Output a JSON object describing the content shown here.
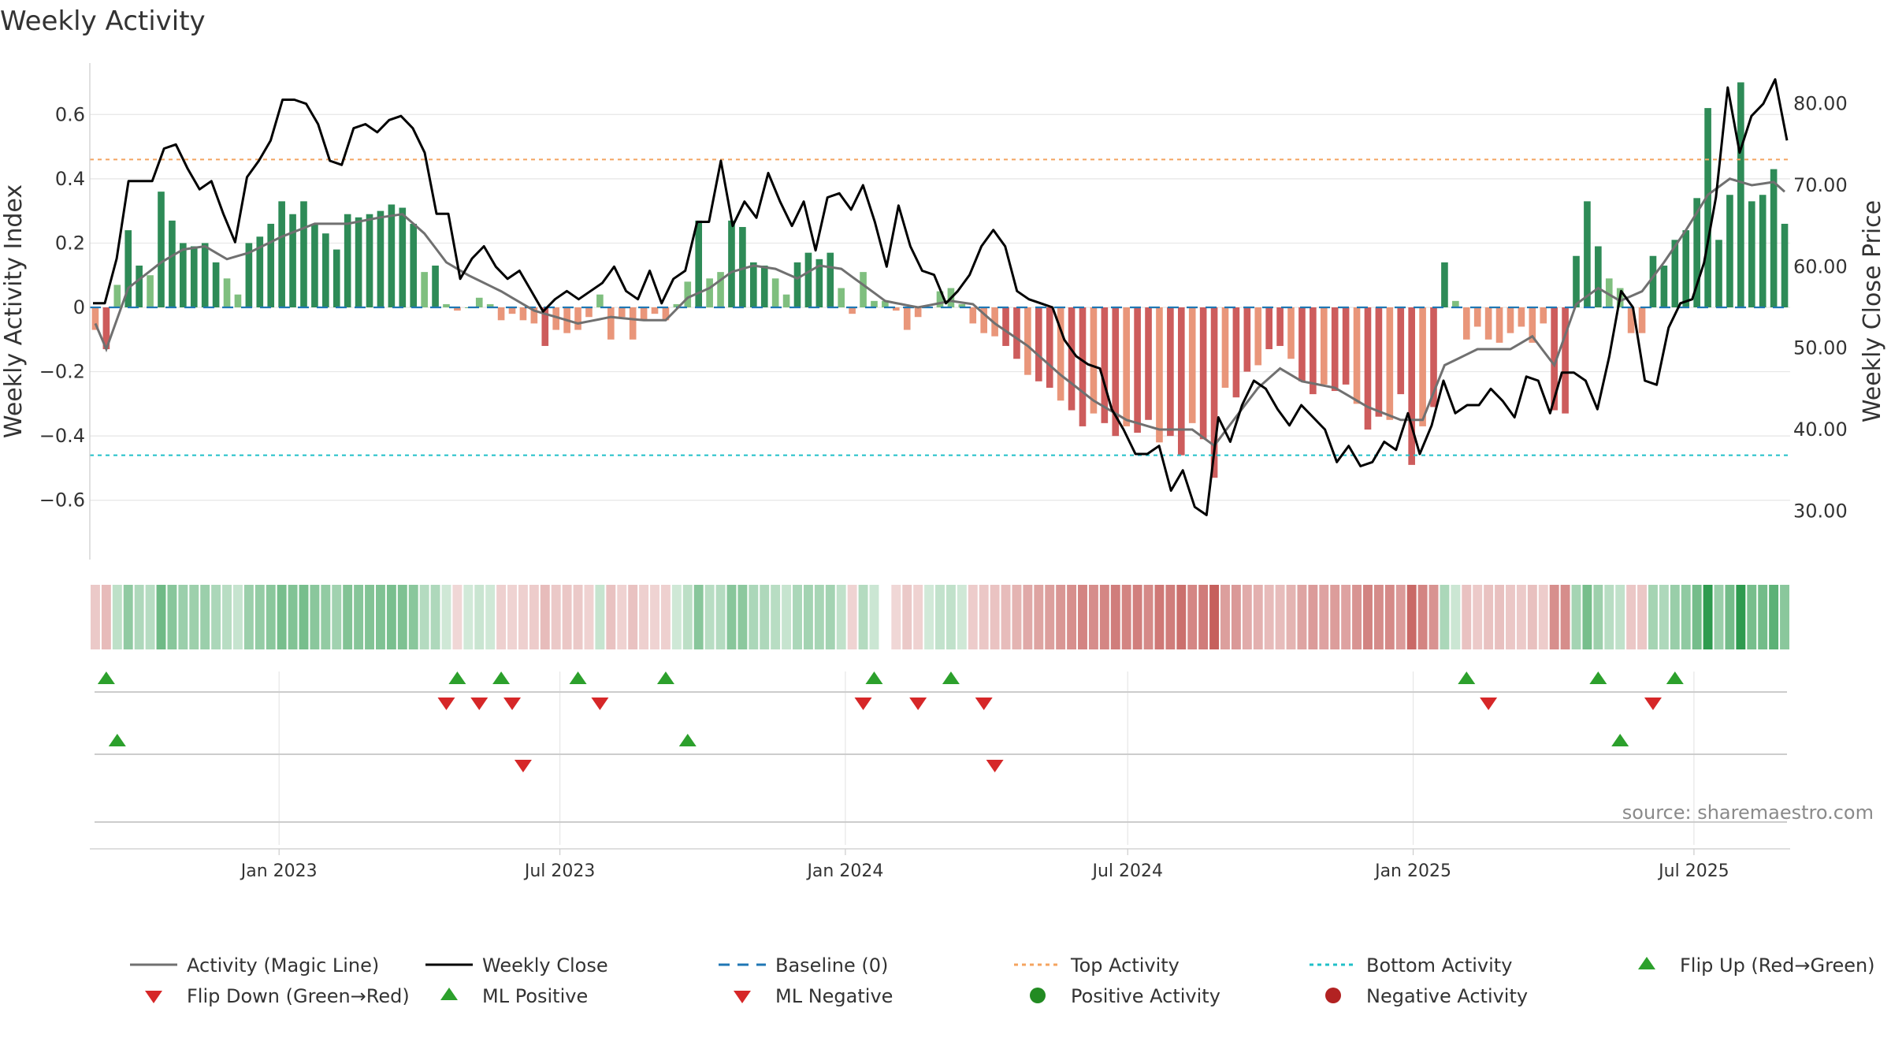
{
  "chart_data": {
    "type": "bar+line",
    "title": "Weekly Activity",
    "ylabel": "Weekly Activity Index",
    "y2label": "Weekly Close Price",
    "ylim": [
      -0.76,
      0.76
    ],
    "y2lim": [
      25.0,
      85.0
    ],
    "yticks": [
      -0.6,
      -0.4,
      -0.2,
      0,
      0.2,
      0.4,
      0.6
    ],
    "ytick_labels": [
      "−0.6",
      "−0.4",
      "−0.2",
      "0",
      "0.2",
      "0.4",
      "0.6"
    ],
    "y2ticks": [
      30,
      40,
      50,
      60,
      70,
      80
    ],
    "y2tick_labels": [
      "30.00",
      "40.00",
      "50.00",
      "60.00",
      "70.00",
      "80.00"
    ],
    "x_start": "2022-09-01",
    "x_end": "2025-09-01",
    "xticks": [
      {
        "date": "2023-01-01",
        "label": "Jan 2023"
      },
      {
        "date": "2023-07-01",
        "label": "Jul 2023"
      },
      {
        "date": "2024-01-01",
        "label": "Jan 2024"
      },
      {
        "date": "2024-07-01",
        "label": "Jul 2024"
      },
      {
        "date": "2025-01-01",
        "label": "Jan 2025"
      },
      {
        "date": "2025-07-01",
        "label": "Jul 2025"
      }
    ],
    "top_activity": 0.46,
    "bottom_activity": -0.46,
    "baseline": 0,
    "bar_anchors": [
      [
        0,
        -0.07
      ],
      [
        1,
        -0.13
      ],
      [
        2,
        0.07
      ],
      [
        3,
        0.24
      ],
      [
        4,
        0.13
      ],
      [
        5,
        0.1
      ],
      [
        6,
        0.36
      ],
      [
        7,
        0.27
      ],
      [
        8,
        0.2
      ],
      [
        9,
        0.19
      ],
      [
        10,
        0.2
      ],
      [
        11,
        0.14
      ],
      [
        12,
        0.09
      ],
      [
        13,
        0.04
      ],
      [
        14,
        0.2
      ],
      [
        15,
        0.22
      ],
      [
        16,
        0.26
      ],
      [
        17,
        0.33
      ],
      [
        18,
        0.29
      ],
      [
        19,
        0.33
      ],
      [
        20,
        0.26
      ],
      [
        21,
        0.23
      ],
      [
        22,
        0.18
      ],
      [
        23,
        0.29
      ],
      [
        24,
        0.28
      ],
      [
        25,
        0.29
      ],
      [
        26,
        0.3
      ],
      [
        27,
        0.32
      ],
      [
        28,
        0.31
      ],
      [
        29,
        0.26
      ],
      [
        30,
        0.11
      ],
      [
        31,
        0.13
      ],
      [
        32,
        0.01
      ],
      [
        33,
        -0.01
      ],
      [
        34,
        0
      ],
      [
        35,
        0.03
      ],
      [
        36,
        0.01
      ],
      [
        37,
        -0.04
      ],
      [
        38,
        -0.02
      ],
      [
        39,
        -0.04
      ],
      [
        40,
        -0.05
      ],
      [
        41,
        -0.12
      ],
      [
        42,
        -0.07
      ],
      [
        43,
        -0.08
      ],
      [
        44,
        -0.07
      ],
      [
        45,
        -0.03
      ],
      [
        46,
        0.04
      ],
      [
        47,
        -0.1
      ],
      [
        48,
        -0.03
      ],
      [
        49,
        -0.1
      ],
      [
        50,
        -0.04
      ],
      [
        51,
        -0.02
      ],
      [
        52,
        -0.04
      ],
      [
        53,
        0.01
      ],
      [
        54,
        0.08
      ],
      [
        55,
        0.27
      ],
      [
        56,
        0.09
      ],
      [
        57,
        0.11
      ],
      [
        58,
        0.27
      ],
      [
        59,
        0.25
      ],
      [
        60,
        0.14
      ],
      [
        61,
        0.13
      ],
      [
        62,
        0.09
      ],
      [
        63,
        0.04
      ],
      [
        64,
        0.14
      ],
      [
        65,
        0.17
      ],
      [
        66,
        0.15
      ],
      [
        67,
        0.17
      ],
      [
        68,
        0.06
      ],
      [
        69,
        -0.02
      ],
      [
        70,
        0.11
      ],
      [
        71,
        0.02
      ],
      [
        72,
        0.02
      ],
      [
        73,
        -0.01
      ],
      [
        74,
        -0.07
      ],
      [
        75,
        -0.03
      ],
      [
        76,
        0
      ],
      [
        77,
        0.05
      ],
      [
        78,
        0.06
      ],
      [
        79,
        0.01
      ],
      [
        80,
        -0.05
      ],
      [
        81,
        -0.08
      ],
      [
        82,
        -0.09
      ],
      [
        83,
        -0.12
      ],
      [
        84,
        -0.16
      ],
      [
        85,
        -0.21
      ],
      [
        86,
        -0.23
      ],
      [
        87,
        -0.25
      ],
      [
        88,
        -0.29
      ],
      [
        89,
        -0.32
      ],
      [
        90,
        -0.37
      ],
      [
        91,
        -0.33
      ],
      [
        92,
        -0.36
      ],
      [
        93,
        -0.4
      ],
      [
        94,
        -0.37
      ],
      [
        95,
        -0.39
      ],
      [
        96,
        -0.35
      ],
      [
        97,
        -0.42
      ],
      [
        98,
        -0.4
      ],
      [
        99,
        -0.46
      ],
      [
        100,
        -0.36
      ],
      [
        101,
        -0.41
      ],
      [
        102,
        -0.53
      ],
      [
        103,
        -0.25
      ],
      [
        104,
        -0.28
      ],
      [
        105,
        -0.2
      ],
      [
        106,
        -0.18
      ],
      [
        107,
        -0.13
      ],
      [
        108,
        -0.12
      ],
      [
        109,
        -0.16
      ],
      [
        110,
        -0.23
      ],
      [
        111,
        -0.27
      ],
      [
        112,
        -0.24
      ],
      [
        113,
        -0.26
      ],
      [
        114,
        -0.24
      ],
      [
        115,
        -0.3
      ],
      [
        116,
        -0.38
      ],
      [
        117,
        -0.34
      ],
      [
        118,
        -0.35
      ],
      [
        119,
        -0.27
      ],
      [
        120,
        -0.49
      ],
      [
        121,
        -0.37
      ],
      [
        122,
        -0.31
      ],
      [
        123,
        0.14
      ],
      [
        124,
        0.02
      ],
      [
        125,
        -0.1
      ],
      [
        126,
        -0.06
      ],
      [
        127,
        -0.1
      ],
      [
        128,
        -0.11
      ],
      [
        129,
        -0.08
      ],
      [
        130,
        -0.06
      ],
      [
        131,
        -0.11
      ],
      [
        132,
        -0.05
      ],
      [
        133,
        -0.32
      ],
      [
        134,
        -0.33
      ],
      [
        135,
        0.16
      ],
      [
        136,
        0.33
      ],
      [
        137,
        0.19
      ],
      [
        138,
        0.09
      ],
      [
        139,
        0.06
      ],
      [
        140,
        -0.08
      ],
      [
        141,
        -0.08
      ],
      [
        142,
        0.16
      ],
      [
        143,
        0.13
      ],
      [
        144,
        0.21
      ],
      [
        145,
        0.24
      ],
      [
        146,
        0.34
      ],
      [
        147,
        0.62
      ],
      [
        148,
        0.21
      ],
      [
        149,
        0.35
      ],
      [
        150,
        0.7
      ],
      [
        151,
        0.33
      ],
      [
        152,
        0.35
      ],
      [
        153,
        0.43
      ],
      [
        154,
        0.26
      ]
    ],
    "magic_line_anchors": [
      [
        0,
        -0.05
      ],
      [
        1,
        -0.13
      ],
      [
        3,
        0.06
      ],
      [
        6,
        0.14
      ],
      [
        8,
        0.18
      ],
      [
        10,
        0.19
      ],
      [
        12,
        0.15
      ],
      [
        14,
        0.17
      ],
      [
        17,
        0.22
      ],
      [
        20,
        0.26
      ],
      [
        23,
        0.26
      ],
      [
        26,
        0.28
      ],
      [
        28,
        0.29
      ],
      [
        30,
        0.23
      ],
      [
        32,
        0.14
      ],
      [
        34,
        0.1
      ],
      [
        37,
        0.05
      ],
      [
        40,
        -0.01
      ],
      [
        44,
        -0.05
      ],
      [
        47,
        -0.03
      ],
      [
        50,
        -0.04
      ],
      [
        52,
        -0.04
      ],
      [
        54,
        0.03
      ],
      [
        56,
        0.06
      ],
      [
        58,
        0.11
      ],
      [
        60,
        0.13
      ],
      [
        62,
        0.12
      ],
      [
        64,
        0.09
      ],
      [
        66,
        0.13
      ],
      [
        68,
        0.12
      ],
      [
        70,
        0.07
      ],
      [
        72,
        0.02
      ],
      [
        75,
        0
      ],
      [
        78,
        0.02
      ],
      [
        80,
        0.01
      ],
      [
        82,
        -0.05
      ],
      [
        85,
        -0.12
      ],
      [
        88,
        -0.21
      ],
      [
        91,
        -0.29
      ],
      [
        94,
        -0.35
      ],
      [
        97,
        -0.38
      ],
      [
        100,
        -0.38
      ],
      [
        102,
        -0.43
      ],
      [
        104,
        -0.34
      ],
      [
        106,
        -0.25
      ],
      [
        108,
        -0.19
      ],
      [
        110,
        -0.23
      ],
      [
        113,
        -0.25
      ],
      [
        116,
        -0.31
      ],
      [
        119,
        -0.35
      ],
      [
        121,
        -0.35
      ],
      [
        123,
        -0.18
      ],
      [
        126,
        -0.13
      ],
      [
        129,
        -0.13
      ],
      [
        131,
        -0.09
      ],
      [
        133,
        -0.18
      ],
      [
        135,
        0.01
      ],
      [
        137,
        0.06
      ],
      [
        139,
        0.02
      ],
      [
        141,
        0.05
      ],
      [
        143,
        0.14
      ],
      [
        145,
        0.24
      ],
      [
        147,
        0.35
      ],
      [
        149,
        0.4
      ],
      [
        151,
        0.38
      ],
      [
        153,
        0.39
      ],
      [
        154,
        0.36
      ]
    ],
    "weekly_close_anchors": [
      [
        0,
        55.5
      ],
      [
        1,
        55.5
      ],
      [
        2,
        61
      ],
      [
        3,
        70.5
      ],
      [
        5,
        70.5
      ],
      [
        6,
        74.5
      ],
      [
        7,
        75
      ],
      [
        8,
        72
      ],
      [
        9,
        69.5
      ],
      [
        10,
        70.5
      ],
      [
        11,
        66.5
      ],
      [
        12,
        63
      ],
      [
        13,
        71
      ],
      [
        14,
        73
      ],
      [
        15,
        75.5
      ],
      [
        16,
        80.5
      ],
      [
        17,
        80.5
      ],
      [
        18,
        80
      ],
      [
        19,
        77.5
      ],
      [
        20,
        73
      ],
      [
        21,
        72.5
      ],
      [
        22,
        77
      ],
      [
        23,
        77.5
      ],
      [
        24,
        76.5
      ],
      [
        25,
        78
      ],
      [
        26,
        78.5
      ],
      [
        27,
        77
      ],
      [
        28,
        74
      ],
      [
        29,
        66.5
      ],
      [
        30,
        66.5
      ],
      [
        31,
        58.5
      ],
      [
        32,
        61
      ],
      [
        33,
        62.5
      ],
      [
        34,
        60
      ],
      [
        35,
        58.5
      ],
      [
        36,
        59.5
      ],
      [
        37,
        57
      ],
      [
        38,
        54.5
      ],
      [
        39,
        56
      ],
      [
        40,
        57
      ],
      [
        41,
        56
      ],
      [
        42,
        57
      ],
      [
        43,
        58
      ],
      [
        44,
        60
      ],
      [
        45,
        57
      ],
      [
        46,
        56
      ],
      [
        47,
        59.5
      ],
      [
        48,
        55.5
      ],
      [
        49,
        58.5
      ],
      [
        50,
        59.5
      ],
      [
        51,
        65.5
      ],
      [
        52,
        65.5
      ],
      [
        53,
        73
      ],
      [
        54,
        65
      ],
      [
        55,
        68
      ],
      [
        56,
        66
      ],
      [
        57,
        71.5
      ],
      [
        58,
        68
      ],
      [
        59,
        65
      ],
      [
        60,
        68
      ],
      [
        61,
        62
      ],
      [
        62,
        68.5
      ],
      [
        63,
        69
      ],
      [
        64,
        67
      ],
      [
        65,
        70
      ],
      [
        66,
        65.5
      ],
      [
        67,
        60
      ],
      [
        68,
        67.5
      ],
      [
        69,
        62.5
      ],
      [
        70,
        59.5
      ],
      [
        71,
        59
      ],
      [
        72,
        55.5
      ],
      [
        73,
        57
      ],
      [
        74,
        59
      ],
      [
        75,
        62.5
      ],
      [
        76,
        64.5
      ],
      [
        77,
        62.5
      ],
      [
        78,
        57
      ],
      [
        79,
        56
      ],
      [
        80,
        55.5
      ],
      [
        81,
        55
      ],
      [
        82,
        51
      ],
      [
        83,
        49
      ],
      [
        84,
        48
      ],
      [
        85,
        47.5
      ],
      [
        86,
        42.5
      ],
      [
        87,
        40
      ],
      [
        88,
        37
      ],
      [
        89,
        37
      ],
      [
        90,
        38
      ],
      [
        91,
        32.5
      ],
      [
        92,
        35
      ],
      [
        93,
        30.5
      ],
      [
        94,
        29.5
      ],
      [
        95,
        41.5
      ],
      [
        96,
        38.5
      ],
      [
        97,
        43
      ],
      [
        98,
        46
      ],
      [
        99,
        45
      ],
      [
        100,
        42.5
      ],
      [
        101,
        40.5
      ],
      [
        102,
        43
      ],
      [
        103,
        41.5
      ],
      [
        104,
        40
      ],
      [
        105,
        36
      ],
      [
        106,
        38
      ],
      [
        107,
        35.5
      ],
      [
        108,
        36
      ],
      [
        109,
        38.5
      ],
      [
        110,
        37.5
      ],
      [
        111,
        42
      ],
      [
        112,
        37
      ],
      [
        113,
        40.5
      ],
      [
        114,
        46
      ],
      [
        115,
        42
      ],
      [
        116,
        43
      ],
      [
        117,
        43
      ],
      [
        118,
        45
      ],
      [
        119,
        43.5
      ],
      [
        120,
        41.5
      ],
      [
        121,
        46.5
      ],
      [
        122,
        46
      ],
      [
        123,
        42
      ],
      [
        124,
        47
      ],
      [
        125,
        47
      ],
      [
        126,
        46
      ],
      [
        127,
        42.5
      ],
      [
        128,
        49
      ],
      [
        129,
        57
      ],
      [
        130,
        55
      ],
      [
        131,
        46
      ],
      [
        132,
        45.5
      ],
      [
        133,
        52.5
      ],
      [
        134,
        55.5
      ],
      [
        135,
        56
      ],
      [
        136,
        60.5
      ],
      [
        137,
        68.5
      ],
      [
        138,
        82
      ],
      [
        139,
        74
      ],
      [
        140,
        78.5
      ],
      [
        141,
        80
      ],
      [
        142,
        83
      ],
      [
        143,
        75.5
      ]
    ],
    "activity_strip": {
      "label": "activity heat strip",
      "gap_index": 72
    },
    "flip_up_weeks": [
      1,
      33,
      37,
      44,
      52,
      71,
      78,
      125,
      137,
      144
    ],
    "flip_down_weeks": [
      32,
      35,
      38,
      46,
      70,
      75,
      81,
      127,
      142
    ],
    "ml_positive_weeks": [
      2,
      54,
      139
    ],
    "ml_negative_weeks": [
      39,
      82
    ],
    "colors": {
      "strong_green": "#2e8b57",
      "light_green": "#7fbf7f",
      "strong_red": "#cd5c5c",
      "light_red": "#e9967a",
      "magic_line": "#707070",
      "weekly_close": "#000000",
      "baseline": "#1f77b4",
      "top_activity": "#f4a460",
      "bottom_activity": "#20c0c8",
      "up_marker": "#2ca02c",
      "down_marker": "#d62728",
      "positive_activity": "#228b22",
      "negative_activity": "#b22222",
      "grid": "#e6e6e6",
      "panel_line": "#cccccc"
    },
    "legend": [
      {
        "label": "Activity (Magic Line)",
        "kind": "line",
        "color": "#707070",
        "dash": ""
      },
      {
        "label": "Weekly Close",
        "kind": "line",
        "color": "#000000",
        "dash": ""
      },
      {
        "label": "Baseline (0)",
        "kind": "line",
        "color": "#1f77b4",
        "dash": "14,10"
      },
      {
        "label": "Top Activity",
        "kind": "line",
        "color": "#f4a460",
        "dash": "5,5"
      },
      {
        "label": "Bottom Activity",
        "kind": "line",
        "color": "#20c0c8",
        "dash": "5,5"
      },
      {
        "label": "Flip Up (Red→Green)",
        "kind": "tri-up",
        "color": "#2ca02c"
      },
      {
        "label": "Flip Down (Green→Red)",
        "kind": "tri-down",
        "color": "#d62728"
      },
      {
        "label": "ML Positive",
        "kind": "tri-up",
        "color": "#2ca02c"
      },
      {
        "label": "ML Negative",
        "kind": "tri-down",
        "color": "#d62728"
      },
      {
        "label": "Positive Activity",
        "kind": "dot",
        "color": "#228b22"
      },
      {
        "label": "Negative Activity",
        "kind": "dot",
        "color": "#b22222"
      }
    ],
    "source_note": "source: sharemaestro.com"
  }
}
